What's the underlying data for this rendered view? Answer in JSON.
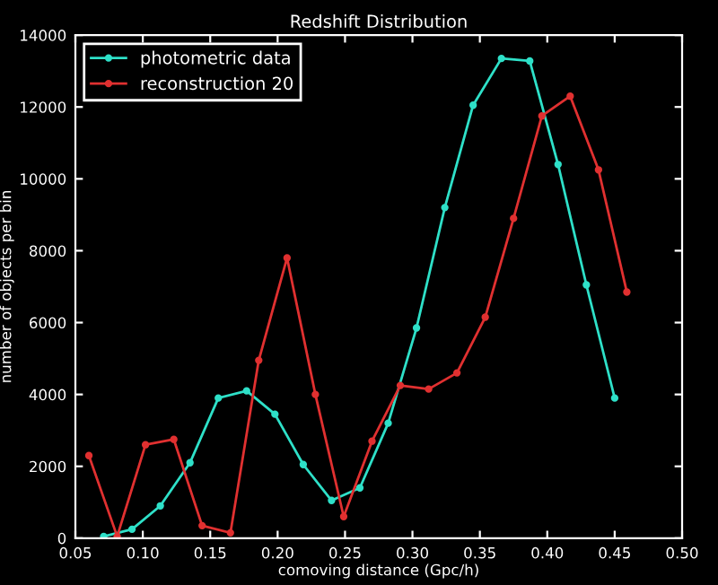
{
  "chart_data": {
    "type": "line",
    "title": "Redshift Distribution",
    "xlabel": "comoving distance (Gpc/h)",
    "ylabel": "number of objects per bin",
    "xlim": [
      0.05,
      0.5
    ],
    "xticks": [
      {
        "value": 0.05,
        "label": "0.05"
      },
      {
        "value": 0.1,
        "label": "0.10"
      },
      {
        "value": 0.15,
        "label": "0.15"
      },
      {
        "value": 0.2,
        "label": "0.20"
      },
      {
        "value": 0.25,
        "label": "0.25"
      },
      {
        "value": 0.3,
        "label": "0.30"
      },
      {
        "value": 0.35,
        "label": "0.35"
      },
      {
        "value": 0.4,
        "label": "0.40"
      },
      {
        "value": 0.45,
        "label": "0.45"
      },
      {
        "value": 0.5,
        "label": "0.50"
      }
    ],
    "ylim": [
      0,
      14000
    ],
    "yticks": [
      0,
      2000,
      4000,
      6000,
      8000,
      10000,
      12000,
      14000
    ],
    "marker": "circle",
    "line_style": "solid",
    "grid": false,
    "legend": "top left",
    "series": [
      {
        "name": "photometric data",
        "color": "#2ee0c8",
        "x": [
          0.071,
          0.092,
          0.113,
          0.135,
          0.156,
          0.177,
          0.198,
          0.219,
          0.24,
          0.261,
          0.282,
          0.303,
          0.324,
          0.345,
          0.366,
          0.387,
          0.408,
          0.429,
          0.45
        ],
        "values": [
          50,
          250,
          900,
          2100,
          3900,
          4100,
          3450,
          2050,
          1050,
          1400,
          3200,
          5850,
          9200,
          12050,
          13350,
          13280,
          10400,
          7050,
          3900
        ]
      },
      {
        "name": "reconstruction 20",
        "color": "#e03030",
        "x": [
          0.06,
          0.081,
          0.102,
          0.123,
          0.144,
          0.165,
          0.186,
          0.207,
          0.228,
          0.249,
          0.27,
          0.291,
          0.312,
          0.333,
          0.354,
          0.375,
          0.396,
          0.417,
          0.438,
          0.459
        ],
        "values": [
          2300,
          50,
          2600,
          2750,
          350,
          150,
          4950,
          7800,
          4000,
          600,
          2700,
          4250,
          4150,
          4600,
          6150,
          8900,
          11750,
          12300,
          10250,
          6850
        ]
      }
    ]
  }
}
